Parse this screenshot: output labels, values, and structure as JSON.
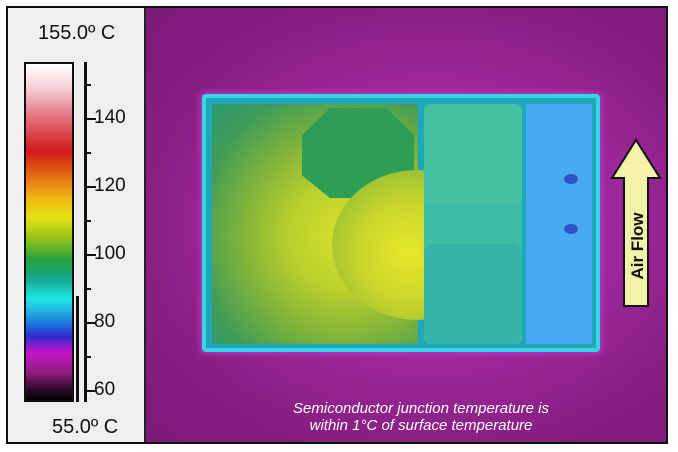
{
  "scale": {
    "max_label": "155.0º C",
    "min_label": "55.0º C",
    "ticks": [
      "140",
      "120",
      "100",
      "80",
      "60"
    ]
  },
  "arrow": {
    "label": "Air Flow",
    "fill": "#f4f1a8",
    "stroke": "#111111"
  },
  "caption": {
    "line1": "Semiconductor junction temperature is",
    "line2": "within 1°C of surface temperature"
  },
  "colors": {
    "background": "#8c1f86",
    "board_edge": "#38d4e8",
    "hot_spot": "#e7e82a"
  }
}
